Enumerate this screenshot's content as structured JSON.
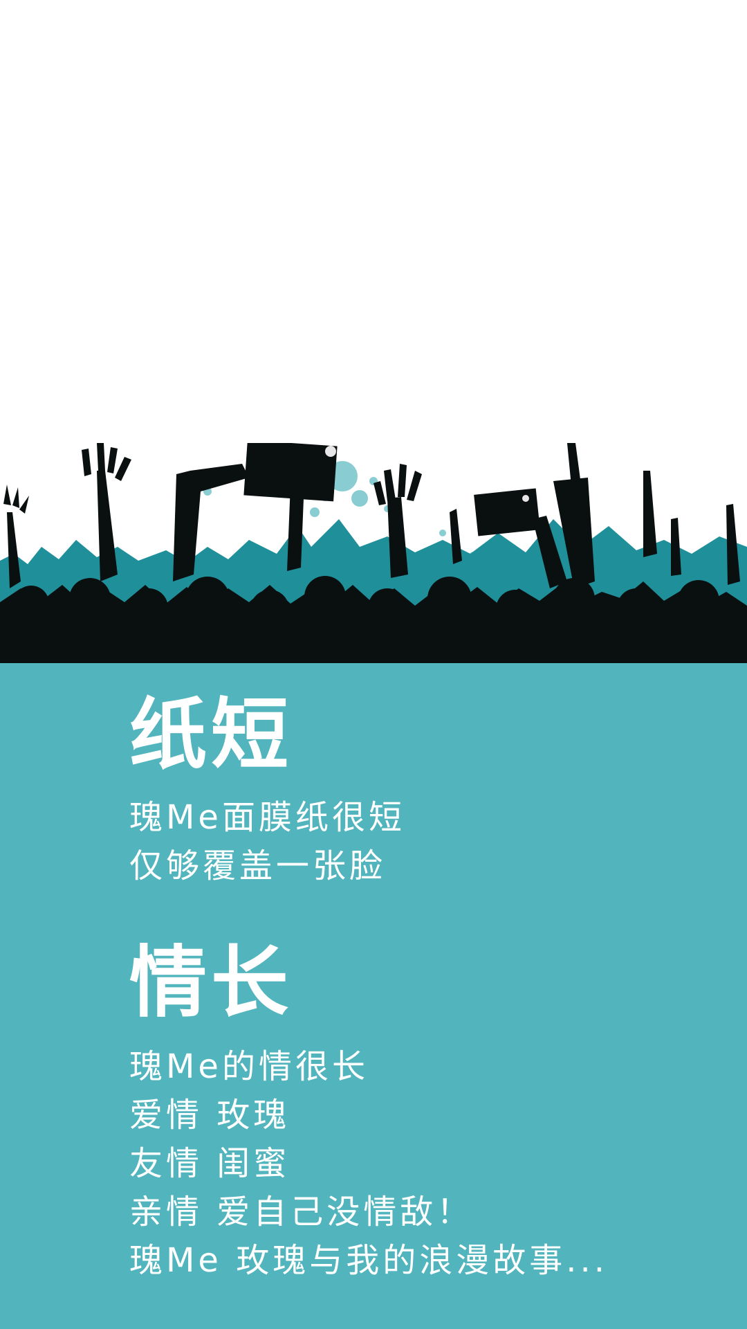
{
  "colors": {
    "panel": "#52b4bd",
    "text": "#ffffff",
    "silhouette": "#0a0f10",
    "crowd_teal": "#1f8f99"
  },
  "section1": {
    "heading": "纸短",
    "lines": [
      "瑰Me面膜纸很短",
      "仅够覆盖一张脸"
    ]
  },
  "section2": {
    "heading": "情长",
    "lines": [
      "瑰Me的情很长",
      "爱情 玫瑰",
      "友情 闺蜜",
      "亲情 爱自己没情敌！",
      "瑰Me 玫瑰与我的浪漫故事..."
    ]
  }
}
